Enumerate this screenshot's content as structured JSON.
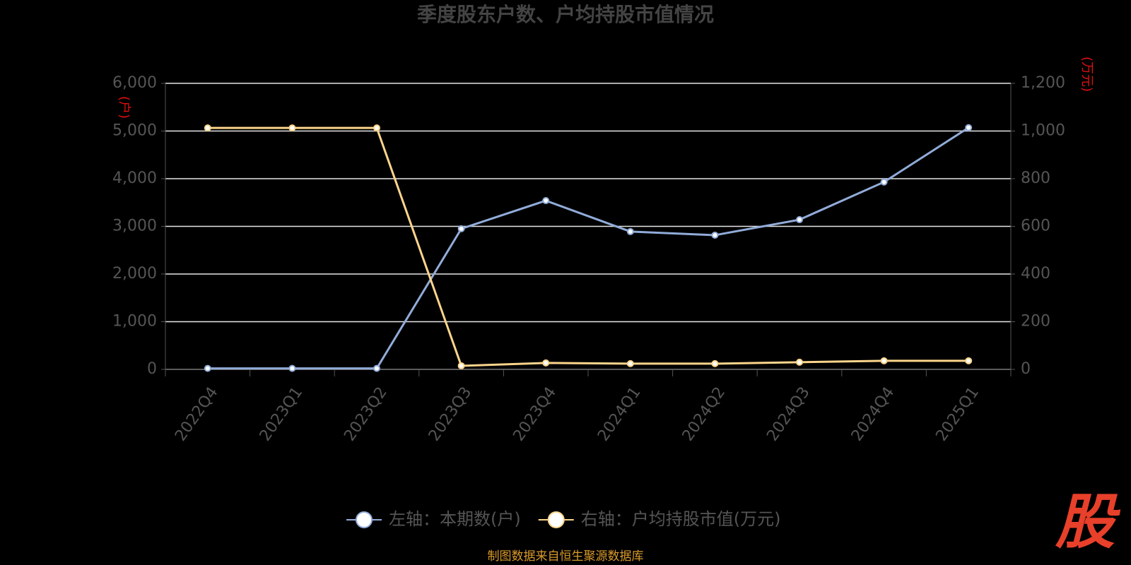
{
  "chart_data": {
    "type": "line",
    "title": "季度股东户数、户均持股市值情况",
    "y_label": "(户)",
    "y2_label": "(万元)",
    "categories": [
      "2022Q4",
      "2023Q1",
      "2023Q2",
      "2023Q3",
      "2023Q4",
      "2024Q1",
      "2024Q2",
      "2024Q3",
      "2024Q4",
      "2025Q1"
    ],
    "series": [
      {
        "name": "左轴：本期数(户)",
        "color": "#91acd9",
        "axis": "y",
        "values": [
          20,
          20,
          20,
          2950,
          3540,
          2890,
          2815,
          3140,
          3930,
          5070
        ]
      },
      {
        "name": "右轴：户均持股市值(万元)",
        "color": "#fcd58b",
        "axis": "y2",
        "values": [
          1013,
          1013,
          1013,
          15,
          27,
          24,
          24,
          30,
          36,
          36
        ]
      }
    ],
    "ylim": [
      0,
      6000
    ],
    "yticks": [
      0,
      {
        "value": 1000,
        "label": "1,000"
      },
      {
        "value": 2000,
        "label": "2,000"
      },
      {
        "value": 3000,
        "label": "3,000"
      },
      {
        "value": 4000,
        "label": "4,000"
      },
      {
        "value": 5000,
        "label": "5,000"
      },
      {
        "value": 6000,
        "label": "6,000"
      }
    ],
    "y2lim": [
      0,
      1200
    ],
    "y2ticks": [
      0,
      200,
      400,
      600,
      800,
      {
        "value": 1000,
        "label": "1,000"
      },
      {
        "value": 1200,
        "label": "1,200"
      }
    ],
    "grid": true
  },
  "source": "制图数据来自恒生聚源数据库",
  "logo": "股"
}
